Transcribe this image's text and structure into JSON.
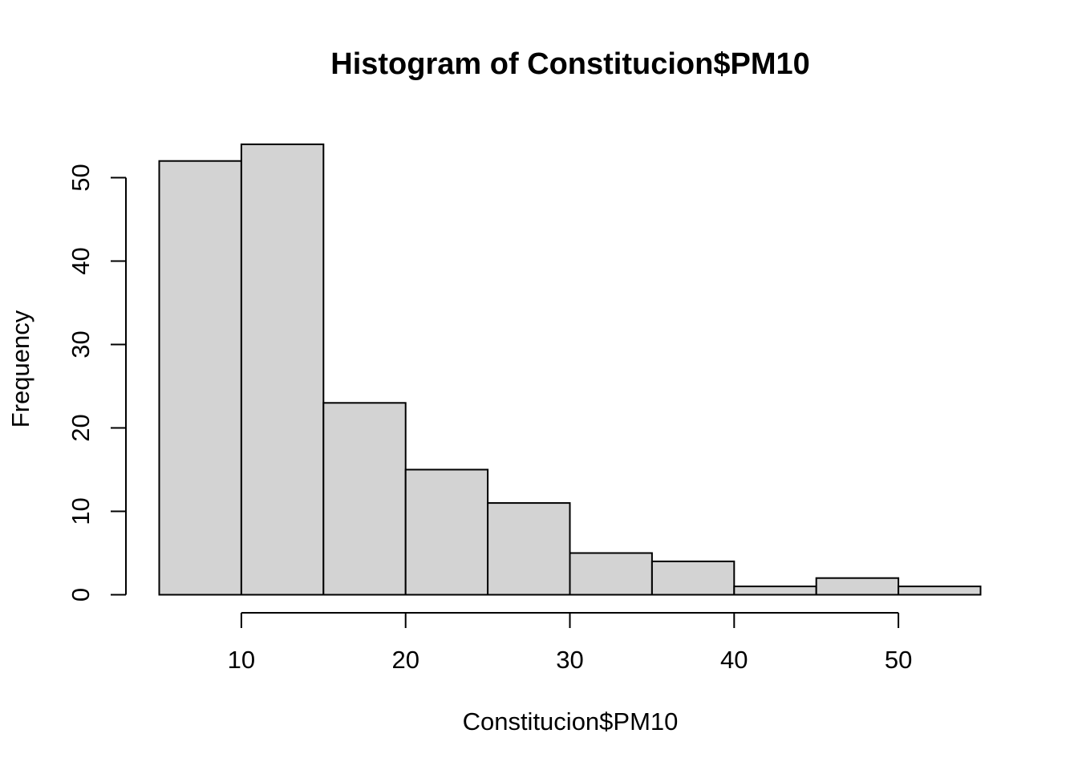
{
  "chart_data": {
    "type": "bar",
    "title": "Histogram of Constitucion$PM10",
    "xlabel": "Constitucion$PM10",
    "ylabel": "Frequency",
    "bins": [
      {
        "start": 5,
        "end": 10,
        "count": 52
      },
      {
        "start": 10,
        "end": 15,
        "count": 54
      },
      {
        "start": 15,
        "end": 20,
        "count": 23
      },
      {
        "start": 20,
        "end": 25,
        "count": 15
      },
      {
        "start": 25,
        "end": 30,
        "count": 11
      },
      {
        "start": 30,
        "end": 35,
        "count": 5
      },
      {
        "start": 35,
        "end": 40,
        "count": 4
      },
      {
        "start": 40,
        "end": 45,
        "count": 1
      },
      {
        "start": 45,
        "end": 50,
        "count": 2
      },
      {
        "start": 50,
        "end": 55,
        "count": 1
      }
    ],
    "xlim": [
      5,
      55
    ],
    "ylim": [
      0,
      54
    ],
    "x_ticks": [
      "10",
      "20",
      "30",
      "40",
      "50"
    ],
    "y_ticks": [
      "0",
      "10",
      "20",
      "30",
      "40",
      "50"
    ],
    "bar_color": "#d3d3d3",
    "grid": false,
    "legend": "none"
  }
}
